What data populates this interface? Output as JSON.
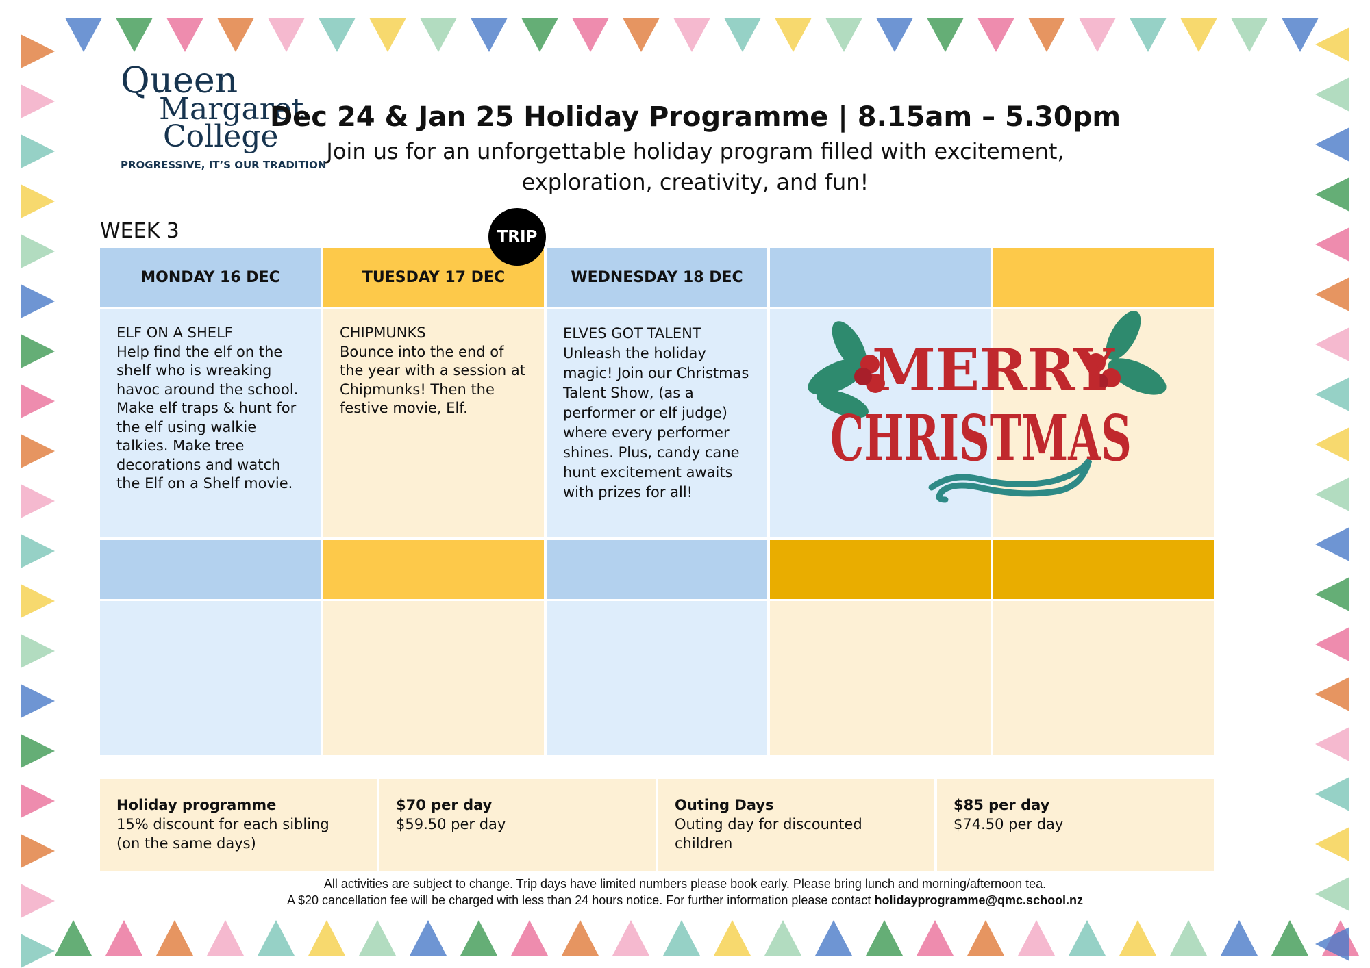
{
  "header": {
    "logo": {
      "lines": [
        "Queen",
        "Margaret",
        "College"
      ],
      "tagline": "PROGRESSIVE, IT’S OUR TRADITION"
    },
    "title": "Dec 24 & Jan 25 Holiday Programme | 8.15am – 5.30pm",
    "subtitle_lines": [
      "Join us for an unforgettable holiday program filled with excitement,",
      "exploration, creativity, and fun!"
    ]
  },
  "week": "WEEK 3",
  "trip_badge": "TRIP",
  "days": [
    {
      "heading": "MONDAY 16 DEC",
      "activity": "ELF ON A SHELF",
      "description": "Help find the elf on the shelf who is wreaking havoc around the school. Make elf traps & hunt for the elf using walkie talkies. Make tree decorations and watch the Elf on a Shelf movie."
    },
    {
      "heading": "TUESDAY 17 DEC",
      "activity": "CHIPMUNKS",
      "description": "Bounce into the end of the year with a session at Chipmunks! Then the festive movie, Elf."
    },
    {
      "heading": "WEDNESDAY 18 DEC",
      "activity": "ELVES GOT TALENT",
      "description": "Unleash the holiday magic! Join our Christmas Talent Show, (as a performer or elf judge) where every performer shines. Plus, candy cane hunt excitement awaits with prizes for all!"
    }
  ],
  "graphic": {
    "lines": [
      "MERRY",
      "CHRISTMAS"
    ]
  },
  "pricing": [
    {
      "heading": "Holiday programme",
      "lines": [
        "15% discount for each sibling",
        "(on the same days)"
      ]
    },
    {
      "heading": "$70 per day",
      "lines": [
        "$59.50 per day"
      ]
    },
    {
      "heading": "Outing Days",
      "lines": [
        "Outing day for discounted children"
      ]
    },
    {
      "heading": "$85 per day",
      "lines": [
        "$74.50 per day"
      ]
    }
  ],
  "footer": {
    "line1": "All activities are subject to change. Trip days have limited numbers please book early. Please bring lunch and morning/afternoon tea.",
    "line2": "A $20 cancellation fee will be charged with less than 24 hours notice. For further information please contact",
    "email": "holidayprogramme@qmc.school.nz"
  }
}
